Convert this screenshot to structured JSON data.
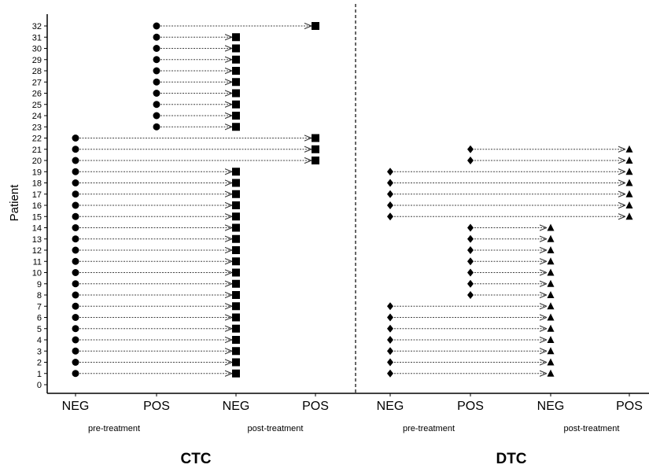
{
  "chart_data": {
    "type": "scatter",
    "ylabel": "Patient",
    "y_ticks": [
      "0",
      "1",
      "2",
      "3",
      "4",
      "5",
      "6",
      "7",
      "8",
      "9",
      "10",
      "11",
      "12",
      "13",
      "14",
      "15",
      "16",
      "17",
      "18",
      "19",
      "20",
      "21",
      "22",
      "23",
      "24",
      "25",
      "26",
      "27",
      "28",
      "29",
      "30",
      "31",
      "32"
    ],
    "ylim": [
      0,
      32
    ],
    "x_categories": [
      "NEG",
      "POS",
      "NEG",
      "POS",
      "NEG",
      "POS",
      "NEG",
      "POS"
    ],
    "phase_labels": [
      "pre-treatment",
      "post-treatment",
      "pre-treatment",
      "post-treatment"
    ],
    "group_labels": [
      "CTC",
      "DTC"
    ],
    "grid": false,
    "divider": "dashed vertical line between CTC and DTC",
    "panels": [
      {
        "group": "CTC",
        "pre_marker": "circle",
        "post_marker": "square",
        "transitions": [
          {
            "pre": "NEG",
            "post": "NEG",
            "patients": [
              1,
              2,
              3,
              4,
              5,
              6,
              7,
              8,
              9,
              10,
              11,
              12,
              13,
              14,
              15,
              16,
              17,
              18,
              19
            ]
          },
          {
            "pre": "NEG",
            "post": "POS",
            "patients": [
              20,
              21,
              22
            ]
          },
          {
            "pre": "POS",
            "post": "NEG",
            "patients": [
              23,
              24,
              25,
              26,
              27,
              28,
              29,
              30,
              31
            ]
          },
          {
            "pre": "POS",
            "post": "POS",
            "patients": [
              32
            ]
          }
        ]
      },
      {
        "group": "DTC",
        "pre_marker": "diamond",
        "post_marker": "triangle",
        "transitions": [
          {
            "pre": "NEG",
            "post": "NEG",
            "patients": [
              1,
              2,
              3,
              4,
              5,
              6,
              7
            ]
          },
          {
            "pre": "POS",
            "post": "NEG",
            "patients": [
              8,
              9,
              10,
              11,
              12,
              13,
              14
            ]
          },
          {
            "pre": "NEG",
            "post": "POS",
            "patients": [
              15,
              16,
              17,
              18,
              19
            ]
          },
          {
            "pre": "POS",
            "post": "POS",
            "patients": [
              20,
              21
            ]
          }
        ]
      }
    ]
  }
}
